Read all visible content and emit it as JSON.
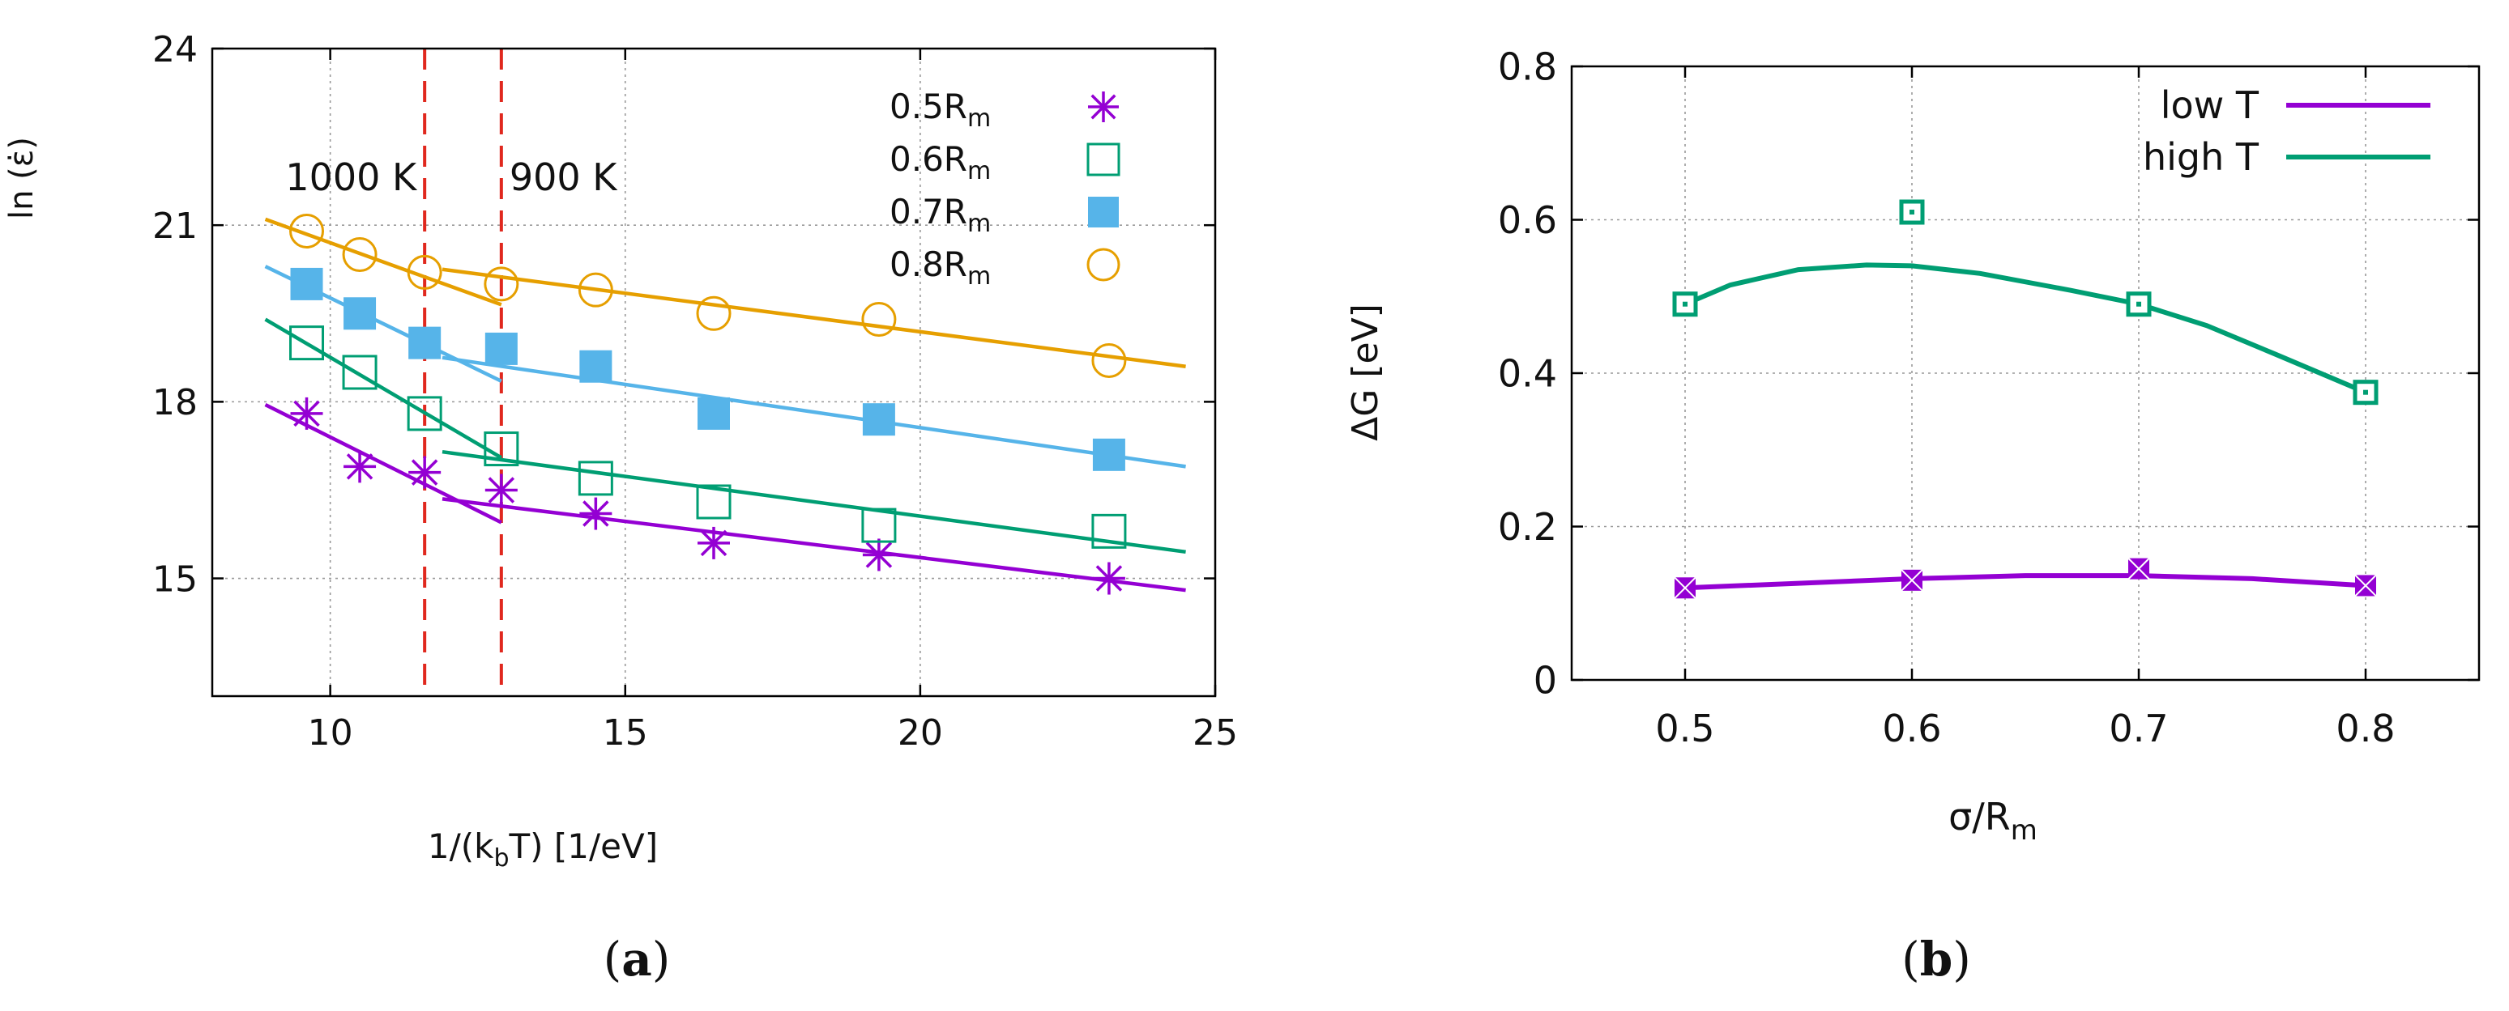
{
  "chart_data": [
    {
      "id": "a",
      "type": "scatter",
      "panel_label": "a",
      "xlabel_main": "1/(k",
      "xlabel_sub": "b",
      "xlabel_tail": "T) [1/eV]",
      "ylabel": "ln (ε̇)",
      "xlim": [
        8,
        25
      ],
      "ylim": [
        13,
        24
      ],
      "xticks": [
        10,
        15,
        20,
        25
      ],
      "yticks": [
        15,
        18,
        21,
        24
      ],
      "grid": true,
      "legend_position": "top-right",
      "vlines": [
        {
          "x": 11.6,
          "label": "1000 K",
          "color": "#e0281e"
        },
        {
          "x": 12.9,
          "label": "900 K",
          "color": "#e0281e"
        }
      ],
      "series": [
        {
          "name": "0.5R",
          "name_sub": "m",
          "marker": "asterisk",
          "color": "#9400d3",
          "x": [
            9.6,
            10.5,
            11.6,
            12.9,
            14.5,
            16.5,
            19.3,
            23.2
          ],
          "y": [
            17.8,
            16.9,
            16.8,
            16.5,
            16.1,
            15.6,
            15.4,
            15.0
          ],
          "fits": [
            {
              "x": [
                8.9,
                12.9
              ],
              "y": [
                17.95,
                15.95
              ]
            },
            {
              "x": [
                11.9,
                24.5
              ],
              "y": [
                16.35,
                14.8
              ]
            }
          ]
        },
        {
          "name": "0.6R",
          "name_sub": "m",
          "marker": "open-square",
          "color": "#009e73",
          "x": [
            9.6,
            10.5,
            11.6,
            12.9,
            14.5,
            16.5,
            19.3,
            23.2
          ],
          "y": [
            19.0,
            18.5,
            17.8,
            17.2,
            16.7,
            16.3,
            15.9,
            15.8
          ],
          "fits": [
            {
              "x": [
                8.9,
                12.9
              ],
              "y": [
                19.4,
                17.05
              ]
            },
            {
              "x": [
                11.9,
                24.5
              ],
              "y": [
                17.15,
                15.45
              ]
            }
          ]
        },
        {
          "name": "0.7R",
          "name_sub": "m",
          "marker": "filled-square",
          "color": "#56b4e9",
          "x": [
            9.6,
            10.5,
            11.6,
            12.9,
            14.5,
            16.5,
            19.3,
            23.2
          ],
          "y": [
            20.0,
            19.5,
            19.0,
            18.9,
            18.6,
            17.8,
            17.7,
            17.1
          ],
          "fits": [
            {
              "x": [
                8.9,
                12.9
              ],
              "y": [
                20.3,
                18.35
              ]
            },
            {
              "x": [
                11.9,
                24.5
              ],
              "y": [
                18.75,
                16.9
              ]
            }
          ]
        },
        {
          "name": "0.8R",
          "name_sub": "m",
          "marker": "open-circle",
          "color": "#e69f00",
          "x": [
            9.6,
            10.5,
            11.6,
            12.9,
            14.5,
            16.5,
            19.3,
            23.2
          ],
          "y": [
            20.9,
            20.5,
            20.2,
            20.0,
            19.9,
            19.5,
            19.4,
            18.7
          ],
          "fits": [
            {
              "x": [
                8.9,
                12.9
              ],
              "y": [
                21.1,
                19.65
              ]
            },
            {
              "x": [
                11.9,
                24.5
              ],
              "y": [
                20.25,
                18.6
              ]
            }
          ]
        }
      ]
    },
    {
      "id": "b",
      "type": "line",
      "panel_label": "b",
      "xlabel_main": "σ/R",
      "xlabel_sub": "m",
      "ylabel": "ΔG [eV]",
      "xlim": [
        0.45,
        0.85
      ],
      "ylim": [
        0,
        0.8
      ],
      "xticks": [
        0.5,
        0.6,
        0.7,
        0.8
      ],
      "yticks": [
        0,
        0.2,
        0.4,
        0.6,
        0.8
      ],
      "grid": true,
      "legend_position": "top-right",
      "series": [
        {
          "name": "low T",
          "marker": "filled-square-x",
          "color": "#9400d3",
          "x": [
            0.5,
            0.6,
            0.7,
            0.8
          ],
          "y": [
            0.12,
            0.13,
            0.145,
            0.123
          ],
          "curve_x": [
            0.5,
            0.55,
            0.6,
            0.65,
            0.7,
            0.75,
            0.8
          ],
          "curve_y": [
            0.12,
            0.126,
            0.132,
            0.136,
            0.136,
            0.132,
            0.123
          ]
        },
        {
          "name": "high T",
          "marker": "open-square-dot",
          "color": "#009e73",
          "x": [
            0.5,
            0.6,
            0.7,
            0.8
          ],
          "y": [
            0.49,
            0.61,
            0.49,
            0.375
          ],
          "curve_x": [
            0.5,
            0.52,
            0.55,
            0.58,
            0.6,
            0.63,
            0.67,
            0.7,
            0.73,
            0.76,
            0.8
          ],
          "curve_y": [
            0.49,
            0.515,
            0.535,
            0.541,
            0.54,
            0.53,
            0.508,
            0.49,
            0.462,
            0.425,
            0.375
          ]
        }
      ]
    }
  ]
}
